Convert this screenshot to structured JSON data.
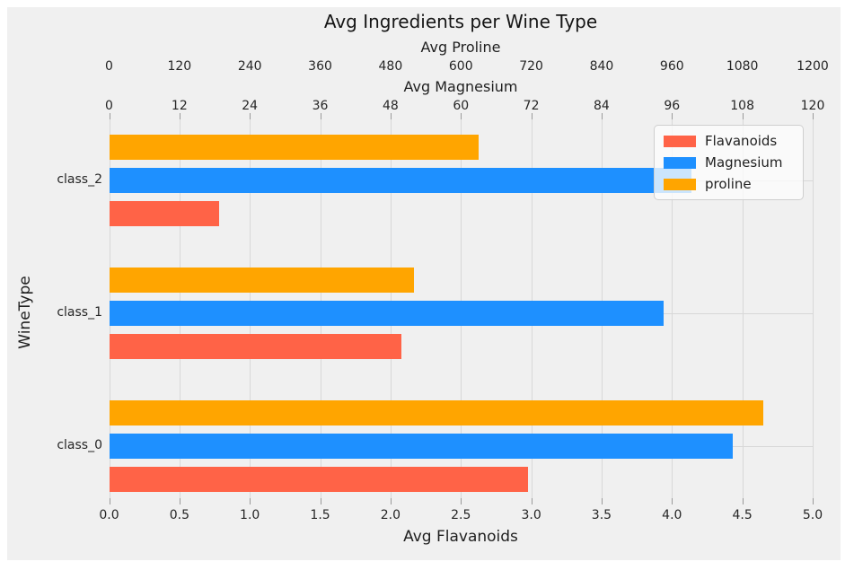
{
  "figure": {
    "background": "#f0f0f0",
    "gridline_color": "#d8d8d8",
    "tick_color": "#9a9a9a"
  },
  "chart_data": {
    "type": "bar",
    "orientation": "horizontal",
    "title": "Avg Ingredients per Wine Type",
    "ylabel": "WineType",
    "categories": [
      "class_0",
      "class_1",
      "class_2"
    ],
    "category_display_order_top_to_bottom": [
      "class_2",
      "class_1",
      "class_0"
    ],
    "grid": true,
    "series": [
      {
        "name": "Flavanoids",
        "color": "#ff6347",
        "axis": "bottom",
        "values": [
          2.98,
          2.08,
          0.78
        ]
      },
      {
        "name": "Magnesium",
        "color": "#1e90ff",
        "axis": "top_magnesium",
        "values": [
          106.34,
          94.55,
          99.31
        ]
      },
      {
        "name": "proline",
        "color": "#ffa500",
        "axis": "top_proline",
        "values": [
          1115.7,
          519.5,
          629.9
        ]
      }
    ],
    "axes": {
      "bottom": {
        "label": "Avg Flavanoids",
        "min": 0,
        "max": 5,
        "ticks": [
          "0.0",
          "0.5",
          "1.0",
          "1.5",
          "2.0",
          "2.5",
          "3.0",
          "3.5",
          "4.0",
          "4.5",
          "5.0"
        ]
      },
      "top_proline": {
        "label": "Avg Proline",
        "min": 0,
        "max": 1200,
        "ticks": [
          "0",
          "120",
          "240",
          "360",
          "480",
          "600",
          "720",
          "840",
          "960",
          "1080",
          "1200"
        ]
      },
      "top_magnesium": {
        "label": "Avg Magnesium",
        "min": 0,
        "max": 120,
        "ticks": [
          "0",
          "12",
          "24",
          "36",
          "48",
          "60",
          "72",
          "84",
          "96",
          "108",
          "120"
        ]
      }
    },
    "legend": {
      "position": "upper right",
      "entries": [
        "Flavanoids",
        "Magnesium",
        "proline"
      ]
    }
  }
}
